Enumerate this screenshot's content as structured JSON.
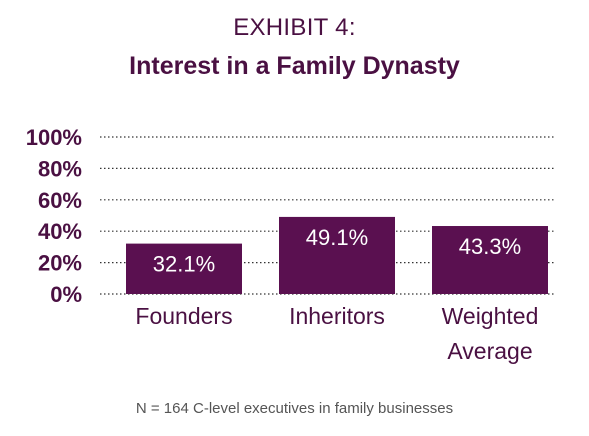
{
  "header": {
    "exhibit": "EXHIBIT 4:",
    "title": "Interest in a Family Dynasty"
  },
  "footnote": "N = 164 C-level executives in family businesses",
  "colors": {
    "bar": "#5a1050",
    "text": "#4a1042",
    "bar_label": "#ffffff",
    "grid": "#333333"
  },
  "chart_data": {
    "type": "bar",
    "categories": [
      "Founders",
      "Inheritors",
      "Weighted Average"
    ],
    "category_lines": [
      [
        "Founders"
      ],
      [
        "Inheritors"
      ],
      [
        "Weighted",
        "Average"
      ]
    ],
    "values": [
      32.1,
      49.1,
      43.3
    ],
    "data_labels": [
      "32.1%",
      "49.1%",
      "43.3%"
    ],
    "ylim": [
      0,
      100
    ],
    "yticks": [
      0,
      20,
      40,
      60,
      80,
      100
    ],
    "ytick_labels": [
      "0%",
      "20%",
      "40%",
      "60%",
      "80%",
      "100%"
    ],
    "grid": "dotted horizontal"
  }
}
